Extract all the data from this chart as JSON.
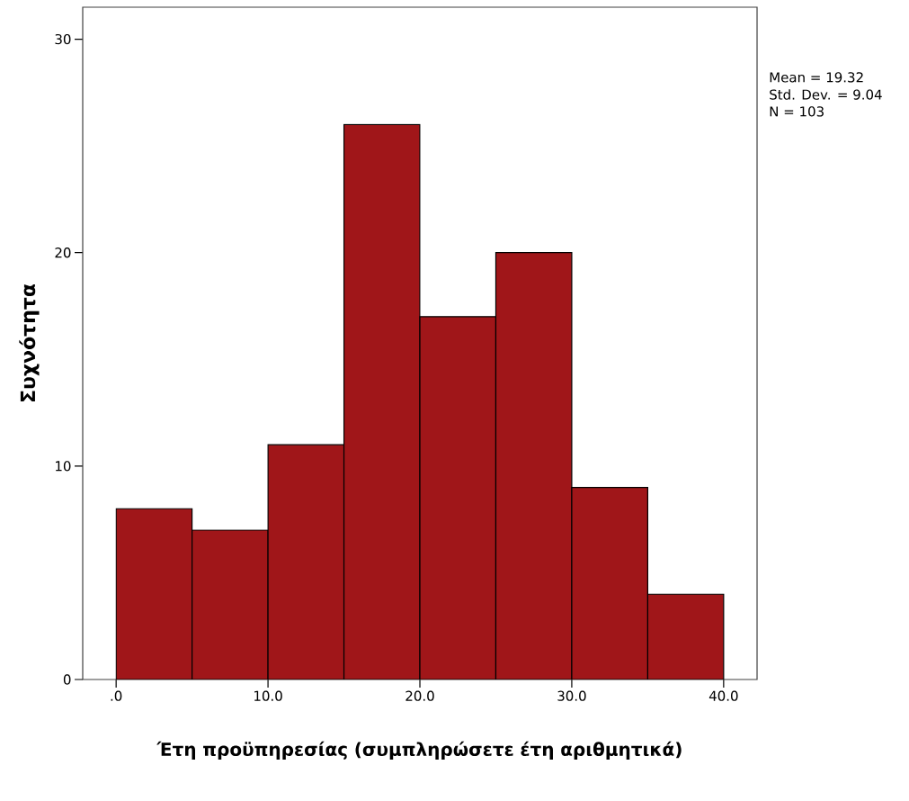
{
  "chart_data": {
    "type": "histogram",
    "xlabel": "Έτη προϋπηρεσίας (συμπληρώσετε έτη αριθμητικά)",
    "ylabel": "Συχνότητα",
    "bins": [
      0,
      5,
      10,
      15,
      20,
      25,
      30,
      35,
      40
    ],
    "values": [
      8,
      7,
      11,
      26,
      17,
      20,
      9,
      4
    ],
    "color": "#a01619",
    "xlim": [
      -2.2,
      42.2
    ],
    "ylim": [
      0,
      31.5
    ],
    "xticks": [
      {
        "value": 0,
        "label": ".0"
      },
      {
        "value": 10,
        "label": "10.0"
      },
      {
        "value": 20,
        "label": "20.0"
      },
      {
        "value": 30,
        "label": "30.0"
      },
      {
        "value": 40,
        "label": "40.0"
      }
    ],
    "yticks": [
      0,
      10,
      20,
      30
    ],
    "annotations": [
      "Mean = 19.32",
      "Std. Dev. = 9.04",
      "N = 103"
    ]
  }
}
